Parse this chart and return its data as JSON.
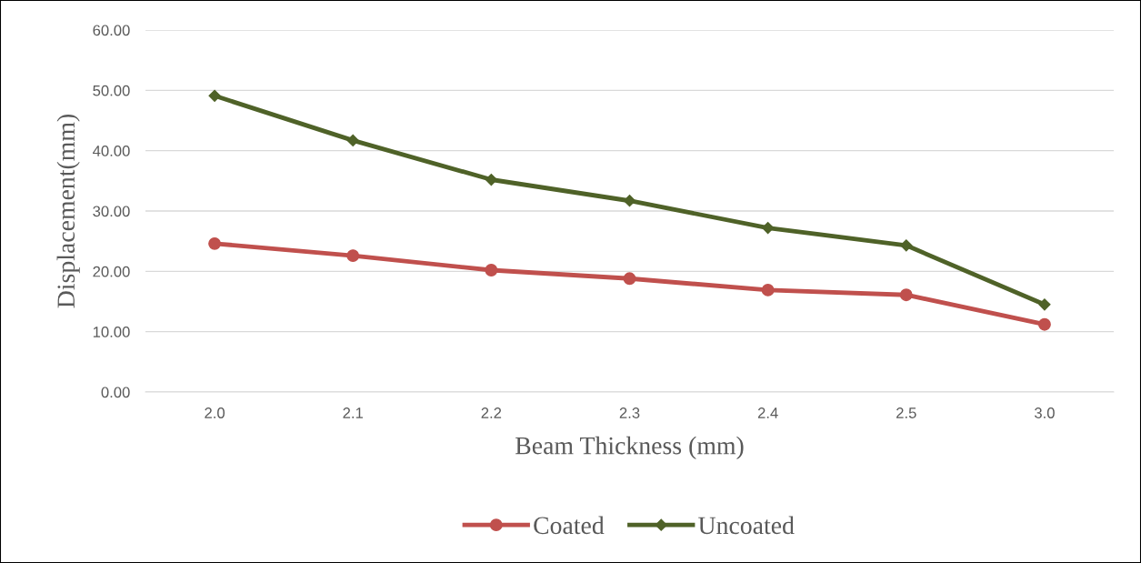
{
  "chart_data": {
    "type": "line",
    "xlabel": "Beam Thickness (mm)",
    "ylabel": "Displacement(mm)",
    "categories": [
      "2.0",
      "2.1",
      "2.2",
      "2.3",
      "2.4",
      "2.5",
      "3.0"
    ],
    "series": [
      {
        "name": "Coated",
        "color": "#c0504d",
        "marker": "circle",
        "values": [
          24.6,
          22.6,
          20.2,
          18.8,
          16.9,
          16.1,
          11.2
        ]
      },
      {
        "name": "Uncoated",
        "color": "#4f6228",
        "marker": "diamond",
        "values": [
          49.1,
          41.7,
          35.2,
          31.7,
          27.2,
          24.3,
          14.5
        ]
      }
    ],
    "ylim": [
      0,
      60
    ],
    "yticks": [
      {
        "value": 0,
        "label": "0.00"
      },
      {
        "value": 10,
        "label": "10.00"
      },
      {
        "value": 20,
        "label": "20.00"
      },
      {
        "value": 30,
        "label": "30.00"
      },
      {
        "value": 40,
        "label": "40.00"
      },
      {
        "value": 50,
        "label": "50.00"
      },
      {
        "value": 60,
        "label": "60.00"
      }
    ],
    "grid": "y",
    "legend": "bottom",
    "line_style": "solid"
  }
}
